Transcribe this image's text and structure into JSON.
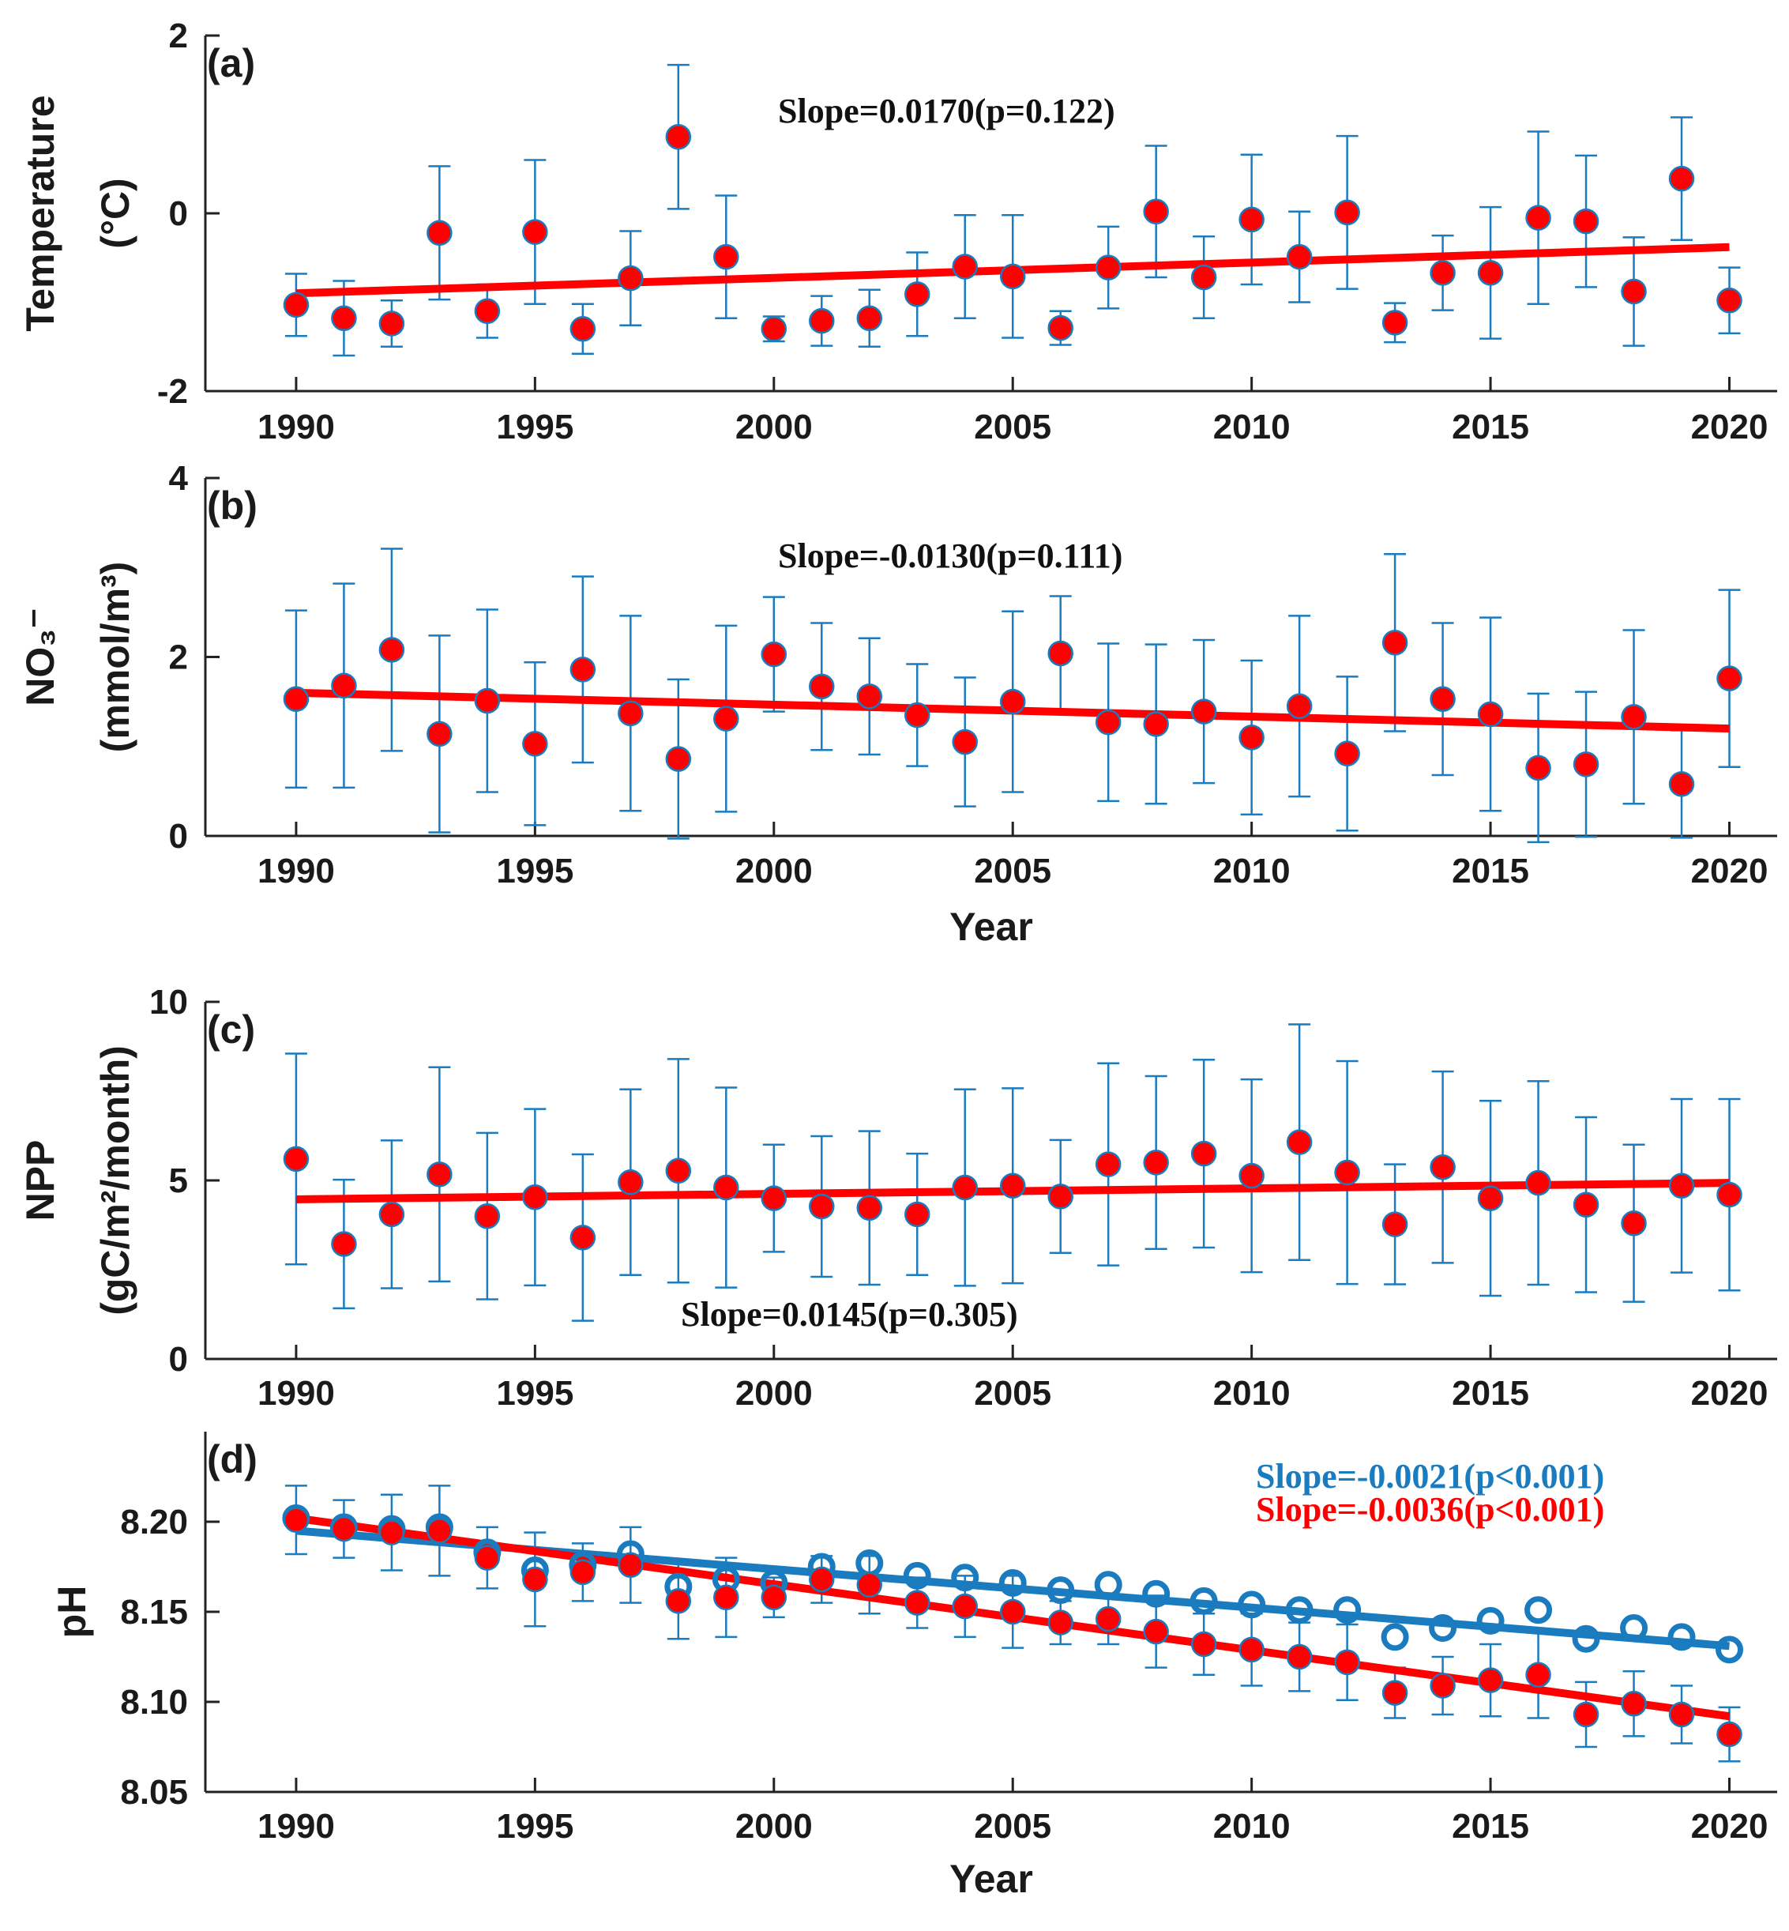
{
  "chart_data": [
    {
      "type": "scatter",
      "panel_label": "(a)",
      "ylabel_lines": [
        "Temperature",
        "(°C)"
      ],
      "xlabel": "",
      "xlim": [
        1988.1,
        2021.0
      ],
      "ylim": [
        -2,
        2
      ],
      "yticks": [
        -2,
        0,
        2
      ],
      "ytick_labels": [
        "-2",
        "0",
        "2"
      ],
      "xticks": [
        1990,
        1995,
        2000,
        2005,
        2010,
        2015,
        2020
      ],
      "xtick_labels": [
        "1990",
        "1995",
        "2000",
        "2005",
        "2010",
        "2015",
        "2020"
      ],
      "x": [
        1990,
        1991,
        1992,
        1993,
        1994,
        1995,
        1996,
        1997,
        1998,
        1999,
        2000,
        2001,
        2002,
        2003,
        2004,
        2005,
        2006,
        2007,
        2008,
        2009,
        2010,
        2011,
        2012,
        2013,
        2014,
        2015,
        2016,
        2017,
        2018,
        2019,
        2020
      ],
      "series": [
        {
          "name": "Temperature",
          "marker": "filled",
          "color": "#ff0000",
          "values": [
            -1.03,
            -1.18,
            -1.24,
            -0.22,
            -1.1,
            -0.21,
            -1.3,
            -0.73,
            0.86,
            -0.49,
            -1.3,
            -1.21,
            -1.18,
            -0.91,
            -0.6,
            -0.71,
            -1.29,
            -0.61,
            0.02,
            -0.72,
            -0.07,
            -0.49,
            0.01,
            -1.23,
            -0.67,
            -0.67,
            -0.05,
            -0.09,
            -0.88,
            0.39,
            -0.98
          ],
          "error": [
            0.35,
            0.42,
            0.26,
            0.75,
            0.3,
            0.81,
            0.28,
            0.53,
            0.81,
            0.69,
            0.14,
            0.28,
            0.32,
            0.47,
            0.58,
            0.69,
            0.19,
            0.46,
            0.74,
            0.46,
            0.73,
            0.51,
            0.86,
            0.22,
            0.42,
            0.74,
            0.97,
            0.74,
            0.61,
            0.69,
            0.37
          ],
          "trend": {
            "start": [
              1990,
              -0.9
            ],
            "end": [
              2020,
              -0.38
            ],
            "color": "#ff0000"
          }
        }
      ],
      "annotations": [
        {
          "text": "Slope=0.0170(p=0.122)",
          "color": "#111111"
        }
      ]
    },
    {
      "type": "scatter",
      "panel_label": "(b)",
      "ylabel_lines": [
        "NO₃⁻",
        "(mmol/m³)"
      ],
      "xlabel": "Year",
      "xlim": [
        1988.1,
        2021.0
      ],
      "ylim": [
        0,
        4
      ],
      "yticks": [
        0,
        2,
        4
      ],
      "ytick_labels": [
        "0",
        "2",
        "4"
      ],
      "xticks": [
        1990,
        1995,
        2000,
        2005,
        2010,
        2015,
        2020
      ],
      "xtick_labels": [
        "1990",
        "1995",
        "2000",
        "2005",
        "2010",
        "2015",
        "2020"
      ],
      "x": [
        1990,
        1991,
        1992,
        1993,
        1994,
        1995,
        1996,
        1997,
        1998,
        1999,
        2000,
        2001,
        2002,
        2003,
        2004,
        2005,
        2006,
        2007,
        2008,
        2009,
        2010,
        2011,
        2012,
        2013,
        2014,
        2015,
        2016,
        2017,
        2018,
        2019,
        2020
      ],
      "series": [
        {
          "name": "NO3",
          "marker": "filled",
          "color": "#ff0000",
          "values": [
            1.53,
            1.68,
            2.08,
            1.14,
            1.51,
            1.03,
            1.86,
            1.37,
            0.86,
            1.31,
            2.03,
            1.67,
            1.56,
            1.35,
            1.05,
            1.5,
            2.04,
            1.27,
            1.25,
            1.39,
            1.1,
            1.45,
            0.92,
            2.16,
            1.53,
            1.36,
            0.76,
            0.8,
            1.33,
            0.58,
            1.76
          ],
          "error": [
            0.99,
            1.14,
            1.13,
            1.1,
            1.02,
            0.91,
            1.04,
            1.09,
            0.89,
            1.04,
            0.64,
            0.71,
            0.65,
            0.57,
            0.72,
            1.01,
            0.64,
            0.88,
            0.89,
            0.8,
            0.86,
            1.01,
            0.86,
            0.99,
            0.85,
            1.08,
            0.83,
            0.81,
            0.97,
            0.6,
            0.99
          ],
          "trend": {
            "start": [
              1990,
              1.6
            ],
            "end": [
              2020,
              1.2
            ],
            "color": "#ff0000"
          }
        }
      ],
      "annotations": [
        {
          "text": "Slope=-0.0130(p=0.111)",
          "color": "#111111"
        }
      ]
    },
    {
      "type": "scatter",
      "panel_label": "(c)",
      "ylabel_lines": [
        "NPP",
        "(gC/m²/month)"
      ],
      "xlabel": "",
      "xlim": [
        1988.1,
        2021.0
      ],
      "ylim": [
        0,
        10
      ],
      "yticks": [
        0,
        5,
        10
      ],
      "ytick_labels": [
        "0",
        "5",
        "10"
      ],
      "xticks": [
        1990,
        1995,
        2000,
        2005,
        2010,
        2015,
        2020
      ],
      "xtick_labels": [
        "1990",
        "1995",
        "2000",
        "2005",
        "2010",
        "2015",
        "2020"
      ],
      "x": [
        1990,
        1991,
        1992,
        1993,
        1994,
        1995,
        1996,
        1997,
        1998,
        1999,
        2000,
        2001,
        2002,
        2003,
        2004,
        2005,
        2006,
        2007,
        2008,
        2009,
        2010,
        2011,
        2012,
        2013,
        2014,
        2015,
        2016,
        2017,
        2018,
        2019,
        2020
      ],
      "series": [
        {
          "name": "NPP",
          "marker": "filled",
          "color": "#ff0000",
          "values": [
            5.6,
            3.22,
            4.05,
            5.17,
            4.0,
            4.53,
            3.4,
            4.95,
            5.27,
            4.8,
            4.5,
            4.27,
            4.23,
            4.05,
            4.8,
            4.85,
            4.55,
            5.45,
            5.5,
            5.75,
            5.13,
            6.07,
            5.22,
            3.77,
            5.37,
            4.5,
            4.93,
            4.32,
            3.8,
            4.85,
            4.6
          ],
          "error": [
            2.95,
            1.8,
            2.07,
            3.0,
            2.33,
            2.47,
            2.33,
            2.6,
            3.13,
            2.8,
            1.5,
            1.97,
            2.15,
            1.7,
            2.75,
            2.73,
            1.58,
            2.83,
            2.42,
            2.63,
            2.7,
            3.3,
            3.12,
            1.68,
            2.68,
            2.73,
            2.85,
            2.45,
            2.2,
            2.43,
            2.68
          ],
          "trend": {
            "start": [
              1990,
              4.47
            ],
            "end": [
              2020,
              4.93
            ],
            "color": "#ff0000"
          }
        }
      ],
      "annotations": [
        {
          "text": "Slope=0.0145(p=0.305)",
          "color": "#111111"
        }
      ]
    },
    {
      "type": "scatter",
      "panel_label": "(d)",
      "ylabel_lines": [
        "pH"
      ],
      "xlabel": "Year",
      "xlim": [
        1988.1,
        2021.0
      ],
      "ylim": [
        8.05,
        8.25
      ],
      "yticks": [
        8.05,
        8.1,
        8.15,
        8.2
      ],
      "ytick_labels": [
        "8.05",
        "8.10",
        "8.15",
        "8.20"
      ],
      "xticks": [
        1990,
        1995,
        2000,
        2005,
        2010,
        2015,
        2020
      ],
      "xtick_labels": [
        "1990",
        "1995",
        "2000",
        "2005",
        "2010",
        "2015",
        "2020"
      ],
      "x": [
        1990,
        1991,
        1992,
        1993,
        1994,
        1995,
        1996,
        1997,
        1998,
        1999,
        2000,
        2001,
        2002,
        2003,
        2004,
        2005,
        2006,
        2007,
        2008,
        2009,
        2010,
        2011,
        2012,
        2013,
        2014,
        2015,
        2016,
        2017,
        2018,
        2019,
        2020
      ],
      "series": [
        {
          "name": "pH (open circles)",
          "marker": "open",
          "color": "#1a7bbf",
          "values": [
            8.202,
            8.197,
            8.196,
            8.197,
            8.183,
            8.173,
            8.176,
            8.182,
            8.164,
            8.168,
            8.166,
            8.175,
            8.177,
            8.17,
            8.169,
            8.166,
            8.162,
            8.165,
            8.16,
            8.156,
            8.154,
            8.151,
            8.151,
            8.136,
            8.141,
            8.145,
            8.151,
            8.135,
            8.141,
            8.136,
            8.129
          ],
          "trend": {
            "start": [
              1990,
              8.195
            ],
            "end": [
              2020,
              8.131
            ],
            "color": "#1a7bbf"
          }
        },
        {
          "name": "pH (filled circles)",
          "marker": "filled",
          "color": "#ff0000",
          "values": [
            8.201,
            8.196,
            8.194,
            8.195,
            8.18,
            8.168,
            8.172,
            8.176,
            8.156,
            8.158,
            8.158,
            8.168,
            8.165,
            8.155,
            8.153,
            8.15,
            8.144,
            8.146,
            8.139,
            8.132,
            8.129,
            8.125,
            8.122,
            8.105,
            8.109,
            8.112,
            8.115,
            8.093,
            8.099,
            8.093,
            8.082
          ],
          "error": [
            0.019,
            0.016,
            0.021,
            0.025,
            0.017,
            0.026,
            0.016,
            0.021,
            0.021,
            0.022,
            0.011,
            0.013,
            0.016,
            0.014,
            0.017,
            0.02,
            0.012,
            0.014,
            0.02,
            0.017,
            0.02,
            0.019,
            0.021,
            0.014,
            0.016,
            0.02,
            0.024,
            0.018,
            0.018,
            0.016,
            0.015
          ],
          "trend": {
            "start": [
              1990,
              8.202
            ],
            "end": [
              2020,
              8.092
            ],
            "color": "#ff0000"
          }
        }
      ],
      "annotations": [
        {
          "text": "Slope=-0.0021(p<0.001)",
          "color": "#1a7bbf"
        },
        {
          "text": "Slope=-0.0036(p<0.001)",
          "color": "#ff0000"
        }
      ]
    }
  ]
}
